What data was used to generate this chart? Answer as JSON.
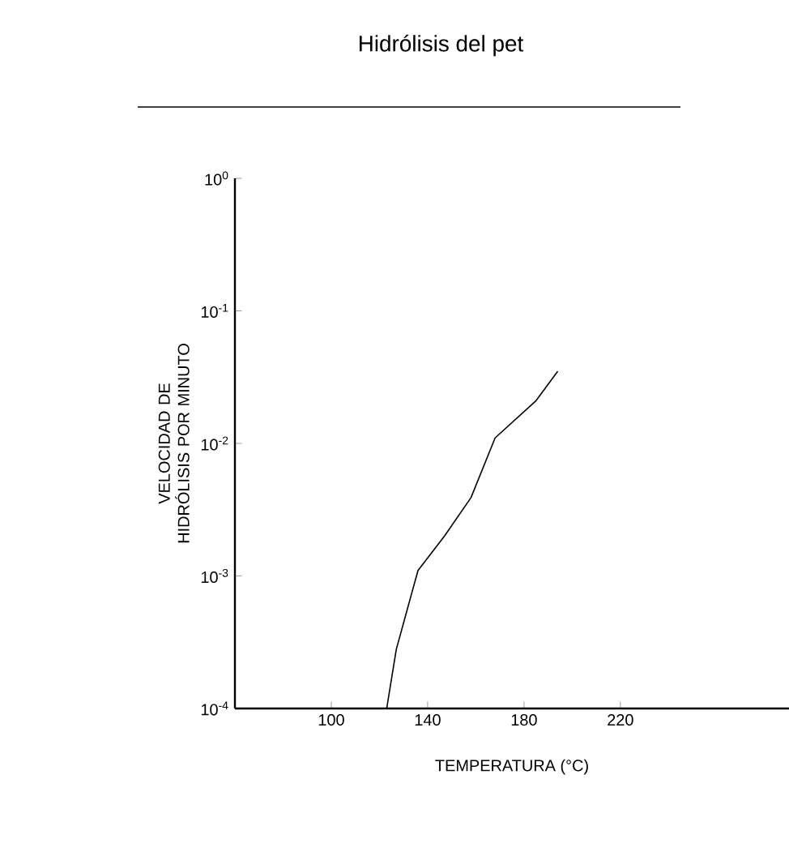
{
  "chart_data": {
    "type": "line",
    "title": "Hidrólisis del pet",
    "xlabel": "TEMPERATURA (°C)",
    "ylabel": "VELOCIDAD DE HIDRÓLISIS POR MINUTO",
    "x": [
      123,
      127,
      136,
      147,
      158,
      168,
      185,
      194
    ],
    "values": [
      0.0001,
      0.00028,
      0.0011,
      0.002,
      0.0039,
      0.011,
      0.021,
      0.035
    ],
    "color": "#000000",
    "log": "y",
    "xlim": [
      60,
      290
    ],
    "ylim": [
      0.0001,
      1
    ],
    "xticks": [
      100,
      140,
      180,
      220
    ],
    "yticks": [
      {
        "value": 0.0001,
        "label": "10$^{-4}$"
      },
      {
        "value": 0.001,
        "label": "10$^{-3}$"
      },
      {
        "value": 0.01,
        "label": "10$^{-2}$"
      },
      {
        "value": 0.1,
        "label": "10$^{-1}$"
      },
      {
        "value": 1,
        "label": "10$^{0}$"
      }
    ],
    "grid": false,
    "marker": "none",
    "line_style": "solid"
  }
}
